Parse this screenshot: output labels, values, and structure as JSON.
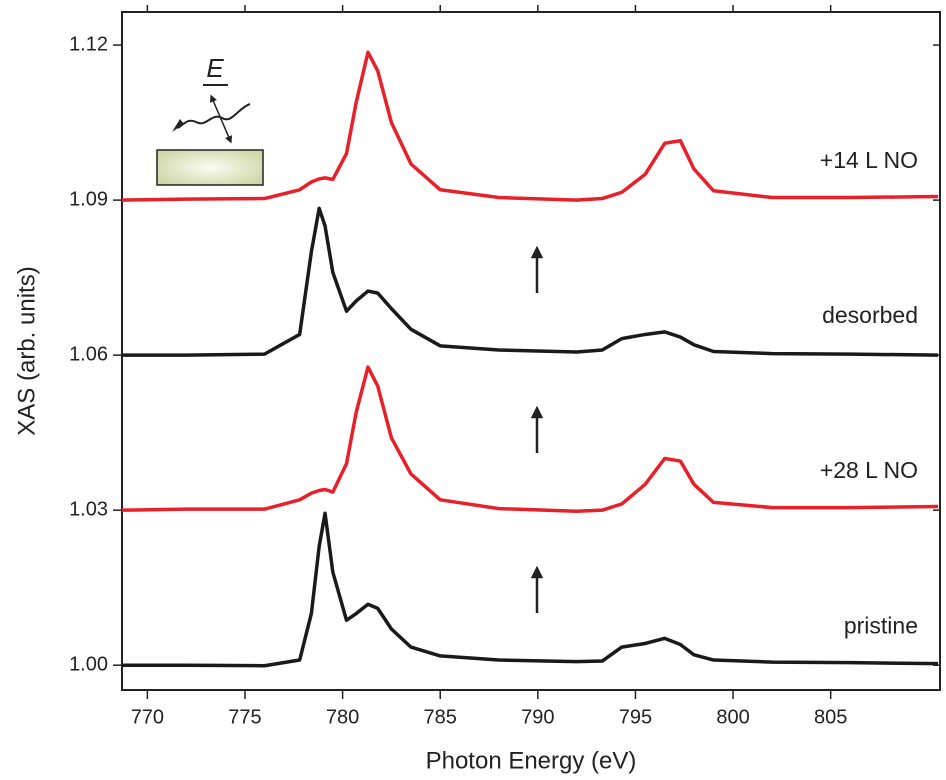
{
  "chart_data": {
    "type": "line",
    "xlabel": "Photon Energy (eV)",
    "ylabel": "XAS (arb. units)",
    "inset_label": "E",
    "xlim": [
      768.7,
      810.6
    ],
    "ylim": [
      0.9952,
      1.1264
    ],
    "xticks": [
      770,
      775,
      780,
      785,
      790,
      795,
      800,
      805
    ],
    "yticks": [
      {
        "value": 1.0,
        "label": "1.00"
      },
      1.03,
      1.06,
      1.09,
      1.12
    ],
    "x": [
      768.7,
      772,
      776,
      777.8,
      778.4,
      778.8,
      779.1,
      779.5,
      780.2,
      780.7,
      781.3,
      781.8,
      782.5,
      783.5,
      785,
      788,
      792,
      793.3,
      794.3,
      795.5,
      796.5,
      797.3,
      798,
      799,
      802,
      806,
      810.5
    ],
    "series": [
      {
        "name": "pristine",
        "color": "#1a1a1a",
        "values": [
          1.0,
          1.0,
          0.9999,
          1.001,
          1.01,
          1.023,
          1.0294,
          1.018,
          1.0087,
          1.01,
          1.0118,
          1.011,
          1.007,
          1.0035,
          1.0018,
          1.001,
          1.0007,
          1.0008,
          1.0035,
          1.0042,
          1.0052,
          1.004,
          1.002,
          1.001,
          1.0006,
          1.0005,
          1.0003
        ]
      },
      {
        "name": "+28 L NO",
        "color": "#e8202a",
        "values": [
          1.03,
          1.0302,
          1.0302,
          1.032,
          1.0333,
          1.0338,
          1.034,
          1.0335,
          1.039,
          1.049,
          1.0577,
          1.054,
          1.044,
          1.037,
          1.032,
          1.0303,
          1.0298,
          1.03,
          1.0312,
          1.035,
          1.04,
          1.0395,
          1.035,
          1.0315,
          1.0305,
          1.0305,
          1.0307
        ]
      },
      {
        "name": "desorbed",
        "color": "#1a1a1a",
        "values": [
          1.06,
          1.06,
          1.0602,
          1.064,
          1.08,
          1.0884,
          1.085,
          1.076,
          1.0685,
          1.0705,
          1.0724,
          1.072,
          1.069,
          1.065,
          1.0618,
          1.061,
          1.0606,
          1.061,
          1.0632,
          1.064,
          1.0645,
          1.0635,
          1.062,
          1.0607,
          1.0603,
          1.0602,
          1.06
        ]
      },
      {
        "name": "+14 L NO",
        "color": "#e8202a",
        "values": [
          1.09,
          1.0902,
          1.0903,
          1.092,
          1.0935,
          1.0941,
          1.0943,
          1.094,
          1.099,
          1.109,
          1.1186,
          1.115,
          1.105,
          1.097,
          1.092,
          1.0905,
          1.09,
          1.0903,
          1.0915,
          1.095,
          1.101,
          1.1015,
          1.096,
          1.0918,
          1.0905,
          1.0905,
          1.0907
        ]
      }
    ]
  }
}
